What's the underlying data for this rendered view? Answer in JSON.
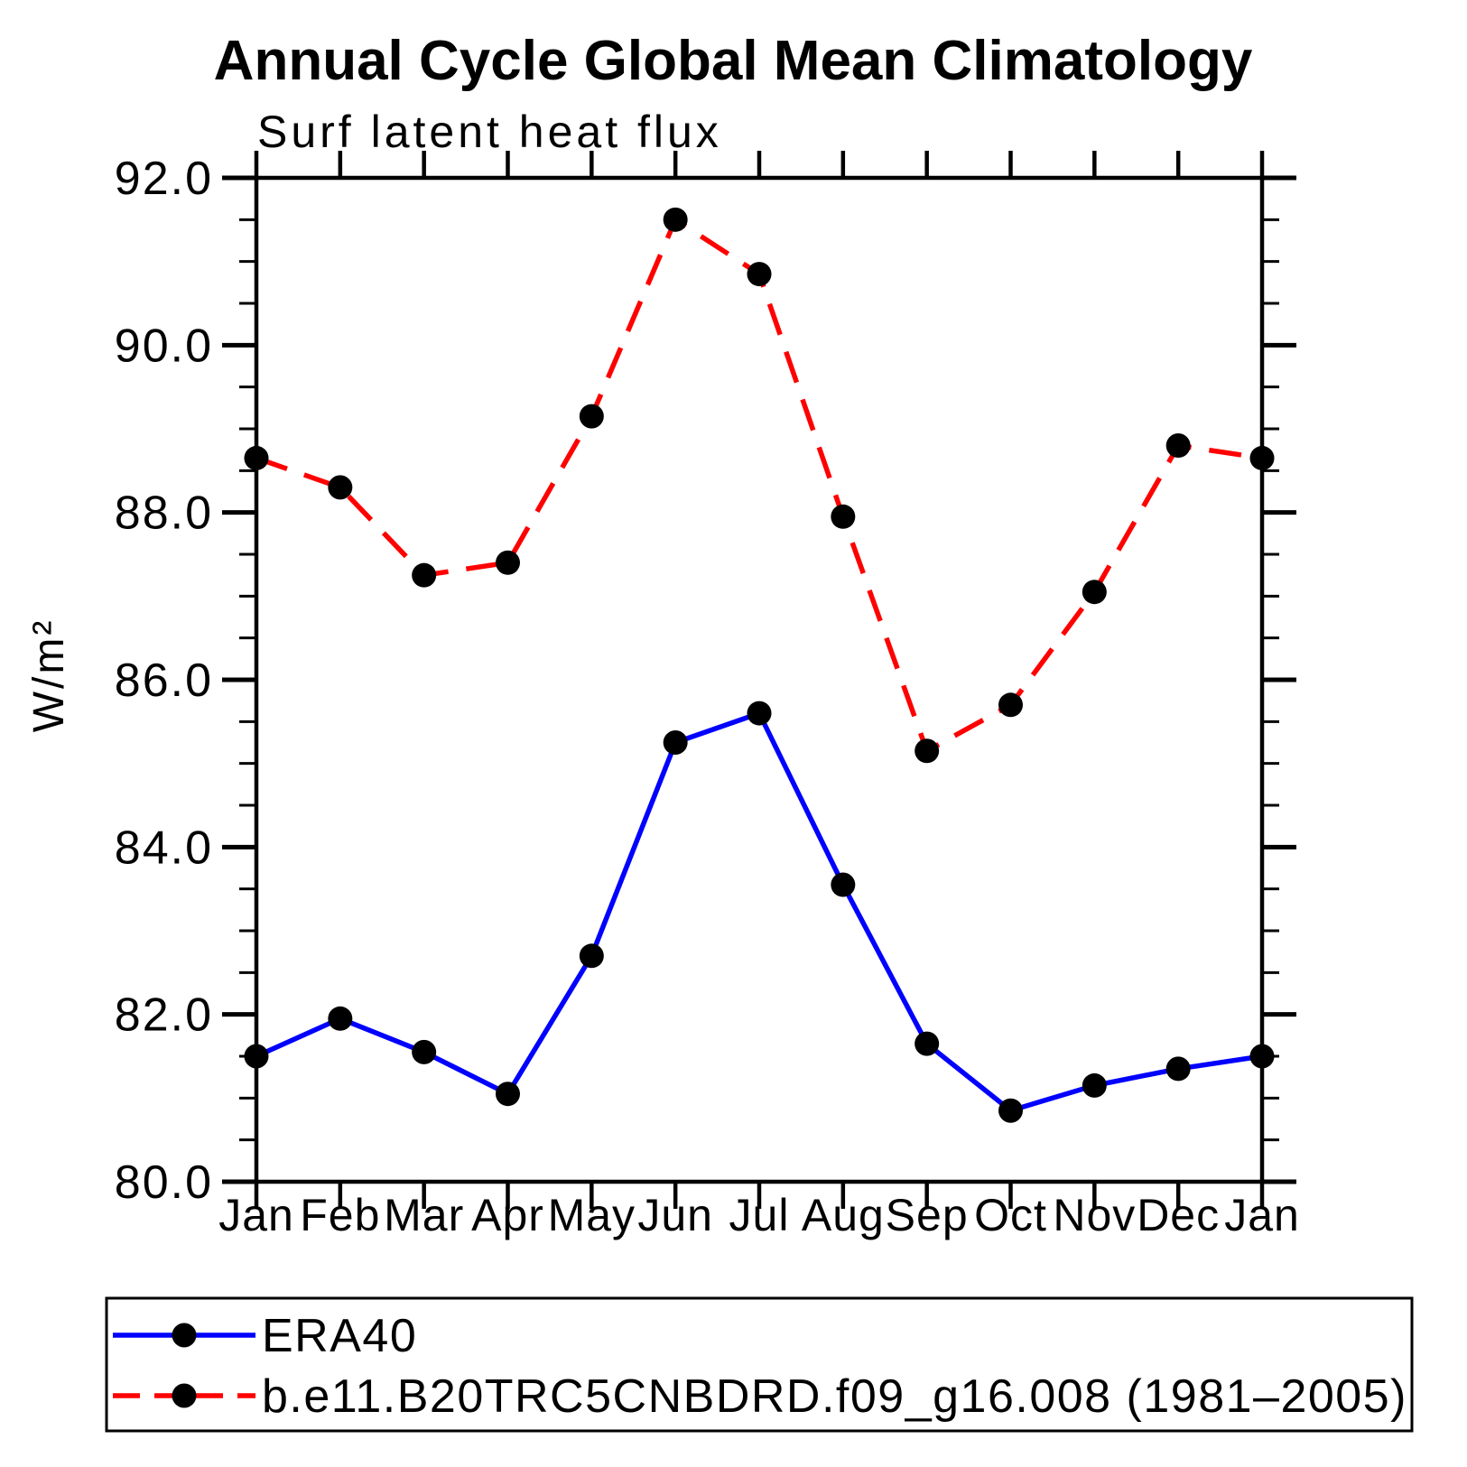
{
  "figure": {
    "title": "Annual Cycle Global Mean Climatology",
    "subtitle": "Surf latent heat flux"
  },
  "chart_data": {
    "type": "line",
    "title": "Annual Cycle Global Mean Climatology",
    "subtitle": "Surf latent heat flux",
    "xlabel": "",
    "ylabel": "W/m²",
    "categories": [
      "Jan",
      "Feb",
      "Mar",
      "Apr",
      "May",
      "Jun",
      "Jul",
      "Aug",
      "Sep",
      "Oct",
      "Nov",
      "Dec",
      "Jan"
    ],
    "ylim": [
      80.0,
      92.0
    ],
    "ytick_major_step": 2.0,
    "ytick_minor_step": 0.5,
    "ytick_labels": [
      "80.0",
      "82.0",
      "84.0",
      "86.0",
      "88.0",
      "90.0",
      "92.0"
    ],
    "grid": false,
    "legend_position": "bottom",
    "series": [
      {
        "name": "ERA40",
        "color": "#0000ff",
        "line_style": "solid",
        "marker": "circle",
        "marker_color": "#000000",
        "values": [
          81.5,
          81.95,
          81.55,
          81.05,
          82.7,
          85.25,
          85.6,
          83.55,
          81.65,
          80.85,
          81.15,
          81.35,
          81.5
        ]
      },
      {
        "name": "b.e11.B20TRC5CNBDRD.f09_g16.008 (1981–2005)",
        "color": "#ff0000",
        "line_style": "dashed",
        "marker": "circle",
        "marker_color": "#000000",
        "values": [
          88.65,
          88.3,
          87.25,
          87.4,
          89.15,
          91.5,
          90.85,
          87.95,
          85.15,
          85.7,
          87.05,
          88.8,
          88.65
        ]
      }
    ]
  }
}
